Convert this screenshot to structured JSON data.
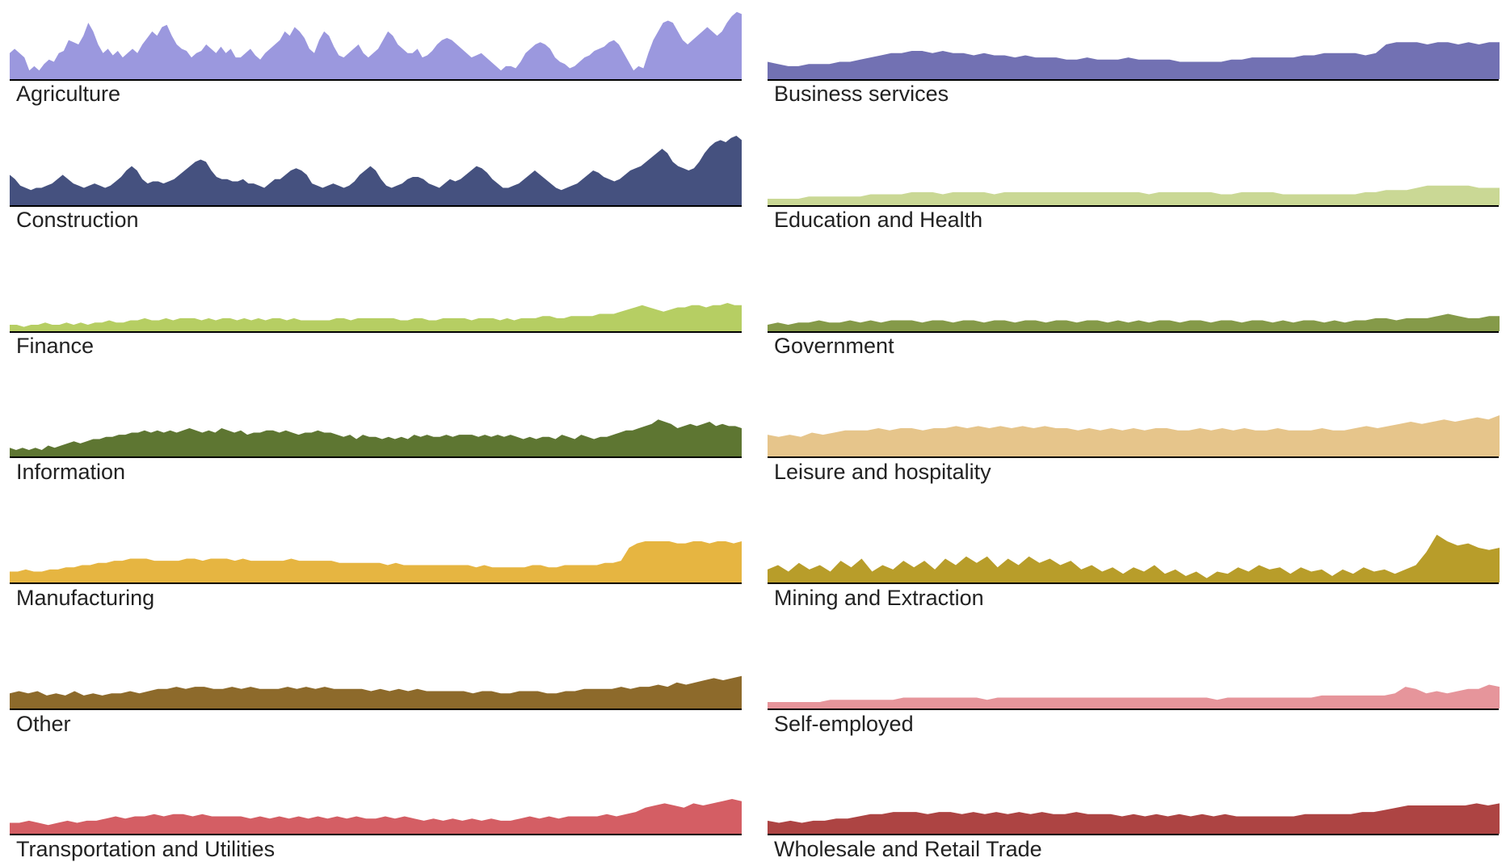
{
  "chart_data": [
    {
      "type": "area",
      "title": "Agriculture",
      "color": "#9b98de",
      "ylim": [
        0,
        32
      ],
      "values": [
        12,
        14,
        12,
        10,
        4,
        6,
        4,
        7,
        9,
        8,
        12,
        13,
        18,
        17,
        16,
        20,
        26,
        22,
        16,
        12,
        14,
        11,
        13,
        10,
        12,
        14,
        12,
        16,
        19,
        22,
        20,
        24,
        25,
        20,
        16,
        14,
        13,
        10,
        12,
        13,
        16,
        14,
        12,
        15,
        12,
        14,
        10,
        10,
        12,
        14,
        11,
        9,
        12,
        14,
        16,
        18,
        22,
        20,
        24,
        22,
        19,
        14,
        12,
        18,
        22,
        20,
        15,
        11,
        10,
        12,
        14,
        16,
        12,
        10,
        12,
        14,
        18,
        22,
        20,
        16,
        14,
        12,
        12,
        14,
        10,
        11,
        13,
        16,
        18,
        19,
        18,
        16,
        14,
        12,
        10,
        11,
        12,
        10,
        8,
        6,
        4,
        6,
        6,
        5,
        8,
        12,
        14,
        16,
        17,
        16,
        14,
        10,
        8,
        7,
        5,
        6,
        8,
        10,
        11,
        13,
        14,
        15,
        17,
        18,
        16,
        12,
        8,
        4,
        6,
        5,
        12,
        18,
        22,
        26,
        27,
        26,
        22,
        18,
        16,
        18,
        20,
        22,
        24,
        22,
        20,
        22,
        26,
        29,
        31,
        30
      ],
      "name": "Agriculture"
    },
    {
      "type": "area",
      "title": "Construction",
      "color": "#45517f",
      "ylim": [
        0,
        32
      ],
      "values": [
        14,
        12,
        9,
        8,
        7,
        8,
        8,
        9,
        10,
        12,
        14,
        12,
        10,
        9,
        8,
        9,
        10,
        9,
        8,
        9,
        11,
        13,
        16,
        18,
        16,
        12,
        10,
        11,
        11,
        10,
        11,
        12,
        14,
        16,
        18,
        20,
        21,
        20,
        16,
        13,
        12,
        12,
        11,
        11,
        12,
        10,
        10,
        9,
        8,
        10,
        12,
        12,
        14,
        16,
        17,
        16,
        14,
        10,
        9,
        8,
        9,
        10,
        9,
        8,
        9,
        11,
        14,
        16,
        18,
        16,
        12,
        9,
        8,
        9,
        10,
        12,
        13,
        13,
        12,
        10,
        9,
        8,
        10,
        12,
        11,
        12,
        14,
        16,
        18,
        17,
        15,
        12,
        10,
        8,
        8,
        9,
        10,
        12,
        14,
        16,
        14,
        12,
        10,
        8,
        7,
        8,
        9,
        10,
        12,
        14,
        16,
        15,
        13,
        12,
        11,
        12,
        14,
        16,
        17,
        18,
        20,
        22,
        24,
        26,
        24,
        20,
        18,
        17,
        16,
        17,
        20,
        24,
        27,
        29,
        30,
        29,
        31,
        32,
        30
      ],
      "name": "Construction"
    },
    {
      "type": "area",
      "title": "Finance",
      "color": "#b6ce63",
      "ylim": [
        0,
        32
      ],
      "values": [
        3,
        3,
        2,
        3,
        3,
        4,
        3,
        3,
        4,
        3,
        4,
        3,
        4,
        4,
        5,
        4,
        4,
        5,
        5,
        6,
        5,
        5,
        6,
        5,
        6,
        6,
        6,
        5,
        6,
        5,
        6,
        6,
        5,
        6,
        5,
        6,
        5,
        6,
        6,
        5,
        6,
        5,
        5,
        5,
        5,
        5,
        6,
        6,
        5,
        6,
        6,
        6,
        6,
        6,
        6,
        5,
        5,
        6,
        6,
        5,
        5,
        6,
        6,
        6,
        6,
        5,
        6,
        6,
        6,
        5,
        6,
        5,
        6,
        6,
        6,
        7,
        7,
        6,
        6,
        7,
        7,
        7,
        7,
        8,
        8,
        8,
        9,
        10,
        11,
        12,
        11,
        10,
        9,
        10,
        11,
        11,
        12,
        12,
        11,
        12,
        12,
        13,
        12,
        12
      ],
      "name": "Finance"
    },
    {
      "type": "area",
      "title": "Information",
      "color": "#5e7632",
      "ylim": [
        0,
        32
      ],
      "values": [
        4,
        3,
        4,
        3,
        4,
        3,
        5,
        4,
        5,
        6,
        7,
        6,
        7,
        8,
        8,
        9,
        9,
        10,
        10,
        11,
        11,
        12,
        11,
        12,
        11,
        12,
        11,
        12,
        13,
        12,
        11,
        12,
        11,
        13,
        12,
        11,
        12,
        10,
        11,
        11,
        12,
        12,
        11,
        12,
        11,
        10,
        11,
        11,
        12,
        11,
        11,
        10,
        9,
        10,
        8,
        10,
        9,
        9,
        8,
        9,
        8,
        9,
        8,
        10,
        9,
        10,
        9,
        9,
        10,
        9,
        10,
        10,
        10,
        9,
        10,
        9,
        10,
        9,
        10,
        9,
        8,
        9,
        8,
        9,
        9,
        8,
        10,
        9,
        8,
        10,
        9,
        8,
        9,
        9,
        10,
        11,
        12,
        12,
        13,
        14,
        15,
        17,
        16,
        15,
        13,
        14,
        15,
        14,
        15,
        16,
        14,
        15,
        14,
        14,
        13
      ],
      "name": "Information"
    },
    {
      "type": "area",
      "title": "Manufacturing",
      "color": "#e6b541",
      "ylim": [
        0,
        32
      ],
      "values": [
        5,
        5,
        6,
        5,
        5,
        6,
        6,
        7,
        7,
        8,
        8,
        9,
        9,
        10,
        10,
        11,
        11,
        11,
        10,
        10,
        10,
        10,
        11,
        11,
        10,
        11,
        11,
        11,
        10,
        11,
        10,
        10,
        10,
        10,
        10,
        11,
        10,
        10,
        10,
        10,
        10,
        9,
        9,
        9,
        9,
        9,
        9,
        8,
        9,
        8,
        8,
        8,
        8,
        8,
        8,
        8,
        8,
        8,
        7,
        8,
        7,
        7,
        7,
        7,
        7,
        8,
        8,
        7,
        7,
        8,
        8,
        8,
        8,
        8,
        9,
        9,
        10,
        16,
        18,
        19,
        19,
        19,
        19,
        18,
        18,
        19,
        19,
        18,
        19,
        19,
        18,
        19
      ],
      "name": "Manufacturing"
    },
    {
      "type": "area",
      "title": "Other",
      "color": "#8d6a2b",
      "ylim": [
        0,
        32
      ],
      "values": [
        7,
        8,
        7,
        8,
        6,
        7,
        6,
        8,
        6,
        7,
        6,
        7,
        7,
        8,
        7,
        8,
        9,
        9,
        10,
        9,
        10,
        10,
        9,
        9,
        10,
        9,
        10,
        9,
        9,
        9,
        10,
        9,
        10,
        9,
        10,
        9,
        9,
        9,
        9,
        8,
        9,
        8,
        9,
        8,
        9,
        8,
        8,
        8,
        8,
        8,
        7,
        8,
        8,
        7,
        7,
        8,
        8,
        8,
        7,
        7,
        8,
        8,
        9,
        9,
        9,
        9,
        10,
        9,
        10,
        10,
        11,
        10,
        12,
        11,
        12,
        13,
        14,
        13,
        14,
        15
      ],
      "name": "Other"
    },
    {
      "type": "area",
      "title": "Transportation and Utilities",
      "color": "#d45e64",
      "ylim": [
        0,
        32
      ],
      "values": [
        5,
        5,
        6,
        5,
        4,
        5,
        6,
        5,
        6,
        6,
        7,
        8,
        7,
        8,
        8,
        9,
        8,
        9,
        9,
        8,
        9,
        8,
        8,
        8,
        8,
        7,
        8,
        7,
        8,
        7,
        8,
        7,
        8,
        7,
        8,
        7,
        8,
        7,
        7,
        8,
        7,
        8,
        7,
        6,
        7,
        6,
        7,
        6,
        7,
        6,
        7,
        6,
        6,
        7,
        8,
        7,
        8,
        7,
        8,
        8,
        8,
        8,
        9,
        8,
        9,
        10,
        12,
        13,
        14,
        13,
        12,
        14,
        13,
        14,
        15,
        16,
        15
      ],
      "name": "Transportation and Utilities"
    },
    {
      "type": "area",
      "title": "Business services",
      "color": "#7271b3",
      "ylim": [
        0,
        32
      ],
      "values": [
        8,
        7,
        6,
        6,
        7,
        7,
        7,
        8,
        8,
        9,
        10,
        11,
        12,
        12,
        13,
        13,
        12,
        13,
        12,
        12,
        11,
        12,
        11,
        11,
        10,
        11,
        10,
        10,
        10,
        9,
        9,
        10,
        9,
        9,
        9,
        10,
        9,
        9,
        9,
        9,
        8,
        8,
        8,
        8,
        8,
        9,
        9,
        10,
        10,
        10,
        10,
        10,
        11,
        11,
        12,
        12,
        12,
        12,
        11,
        12,
        16,
        17,
        17,
        17,
        16,
        17,
        17,
        16,
        17,
        16,
        17,
        17
      ],
      "name": "Business services"
    },
    {
      "type": "area",
      "title": "Education and Health",
      "color": "#cad895",
      "ylim": [
        0,
        32
      ],
      "values": [
        3,
        3,
        3,
        3,
        4,
        4,
        4,
        4,
        4,
        4,
        5,
        5,
        5,
        5,
        6,
        6,
        6,
        5,
        6,
        6,
        6,
        6,
        5,
        6,
        6,
        6,
        6,
        6,
        6,
        6,
        6,
        6,
        6,
        6,
        6,
        6,
        6,
        5,
        6,
        6,
        6,
        6,
        6,
        6,
        5,
        5,
        6,
        6,
        6,
        6,
        5,
        5,
        5,
        5,
        5,
        5,
        5,
        5,
        6,
        6,
        7,
        7,
        7,
        8,
        9,
        9,
        9,
        9,
        9,
        8,
        8,
        8
      ],
      "name": "Education and Health"
    },
    {
      "type": "area",
      "title": "Government",
      "color": "#859a49",
      "ylim": [
        0,
        32
      ],
      "values": [
        3,
        4,
        3,
        4,
        4,
        5,
        4,
        4,
        5,
        4,
        5,
        4,
        5,
        5,
        5,
        4,
        5,
        5,
        4,
        5,
        5,
        4,
        5,
        5,
        4,
        5,
        5,
        4,
        5,
        5,
        4,
        5,
        5,
        4,
        5,
        4,
        5,
        4,
        5,
        5,
        4,
        5,
        5,
        4,
        5,
        5,
        4,
        5,
        5,
        4,
        5,
        4,
        5,
        5,
        4,
        5,
        4,
        5,
        5,
        6,
        6,
        5,
        6,
        6,
        6,
        7,
        8,
        7,
        6,
        6,
        7,
        7
      ],
      "name": "Government"
    },
    {
      "type": "area",
      "title": "Leisure and hospitality",
      "color": "#e6c58b",
      "ylim": [
        0,
        32
      ],
      "values": [
        10,
        9,
        10,
        9,
        11,
        10,
        11,
        12,
        12,
        12,
        13,
        12,
        13,
        13,
        12,
        13,
        13,
        14,
        13,
        14,
        13,
        14,
        13,
        14,
        13,
        14,
        13,
        13,
        12,
        13,
        12,
        13,
        12,
        13,
        12,
        13,
        13,
        12,
        12,
        13,
        12,
        13,
        12,
        13,
        12,
        12,
        13,
        12,
        12,
        12,
        13,
        12,
        12,
        13,
        14,
        13,
        14,
        15,
        16,
        15,
        16,
        17,
        16,
        17,
        18,
        17,
        19
      ],
      "name": "Leisure and hospitality"
    },
    {
      "type": "area",
      "title": "Mining and Extraction",
      "color": "#b89d2a",
      "ylim": [
        0,
        32
      ],
      "values": [
        6,
        8,
        5,
        9,
        6,
        8,
        5,
        10,
        7,
        11,
        5,
        8,
        6,
        10,
        7,
        10,
        6,
        11,
        8,
        12,
        9,
        12,
        7,
        11,
        8,
        12,
        9,
        11,
        8,
        10,
        6,
        8,
        5,
        7,
        4,
        7,
        5,
        8,
        4,
        6,
        3,
        5,
        2,
        5,
        4,
        7,
        5,
        8,
        6,
        7,
        4,
        7,
        5,
        6,
        3,
        6,
        4,
        7,
        5,
        6,
        4,
        6,
        8,
        14,
        22,
        19,
        17,
        18,
        16,
        15,
        16
      ],
      "name": "Mining and Extraction"
    },
    {
      "type": "area",
      "title": "Self-employed",
      "color": "#e6959b",
      "ylim": [
        0,
        32
      ],
      "values": [
        3,
        3,
        3,
        3,
        3,
        3,
        4,
        4,
        4,
        4,
        4,
        4,
        4,
        5,
        5,
        5,
        5,
        5,
        5,
        5,
        5,
        4,
        5,
        5,
        5,
        5,
        5,
        5,
        5,
        5,
        5,
        5,
        5,
        5,
        5,
        5,
        5,
        5,
        5,
        5,
        5,
        5,
        5,
        4,
        5,
        5,
        5,
        5,
        5,
        5,
        5,
        5,
        5,
        6,
        6,
        6,
        6,
        6,
        6,
        6,
        7,
        10,
        9,
        7,
        8,
        7,
        8,
        9,
        9,
        11,
        10
      ],
      "name": "Self-employed"
    },
    {
      "type": "area",
      "title": "Wholesale and Retail Trade",
      "color": "#ad4443",
      "ylim": [
        0,
        32
      ],
      "values": [
        6,
        5,
        6,
        5,
        6,
        6,
        7,
        7,
        8,
        9,
        9,
        10,
        10,
        10,
        9,
        10,
        10,
        9,
        10,
        9,
        10,
        9,
        10,
        9,
        10,
        9,
        9,
        10,
        9,
        9,
        9,
        8,
        9,
        8,
        9,
        8,
        9,
        8,
        9,
        8,
        9,
        8,
        8,
        8,
        8,
        8,
        8,
        9,
        9,
        9,
        9,
        9,
        10,
        10,
        11,
        12,
        13,
        13,
        13,
        13,
        13,
        13,
        14,
        13,
        14
      ],
      "name": "Wholesale and Retail Trade"
    }
  ]
}
